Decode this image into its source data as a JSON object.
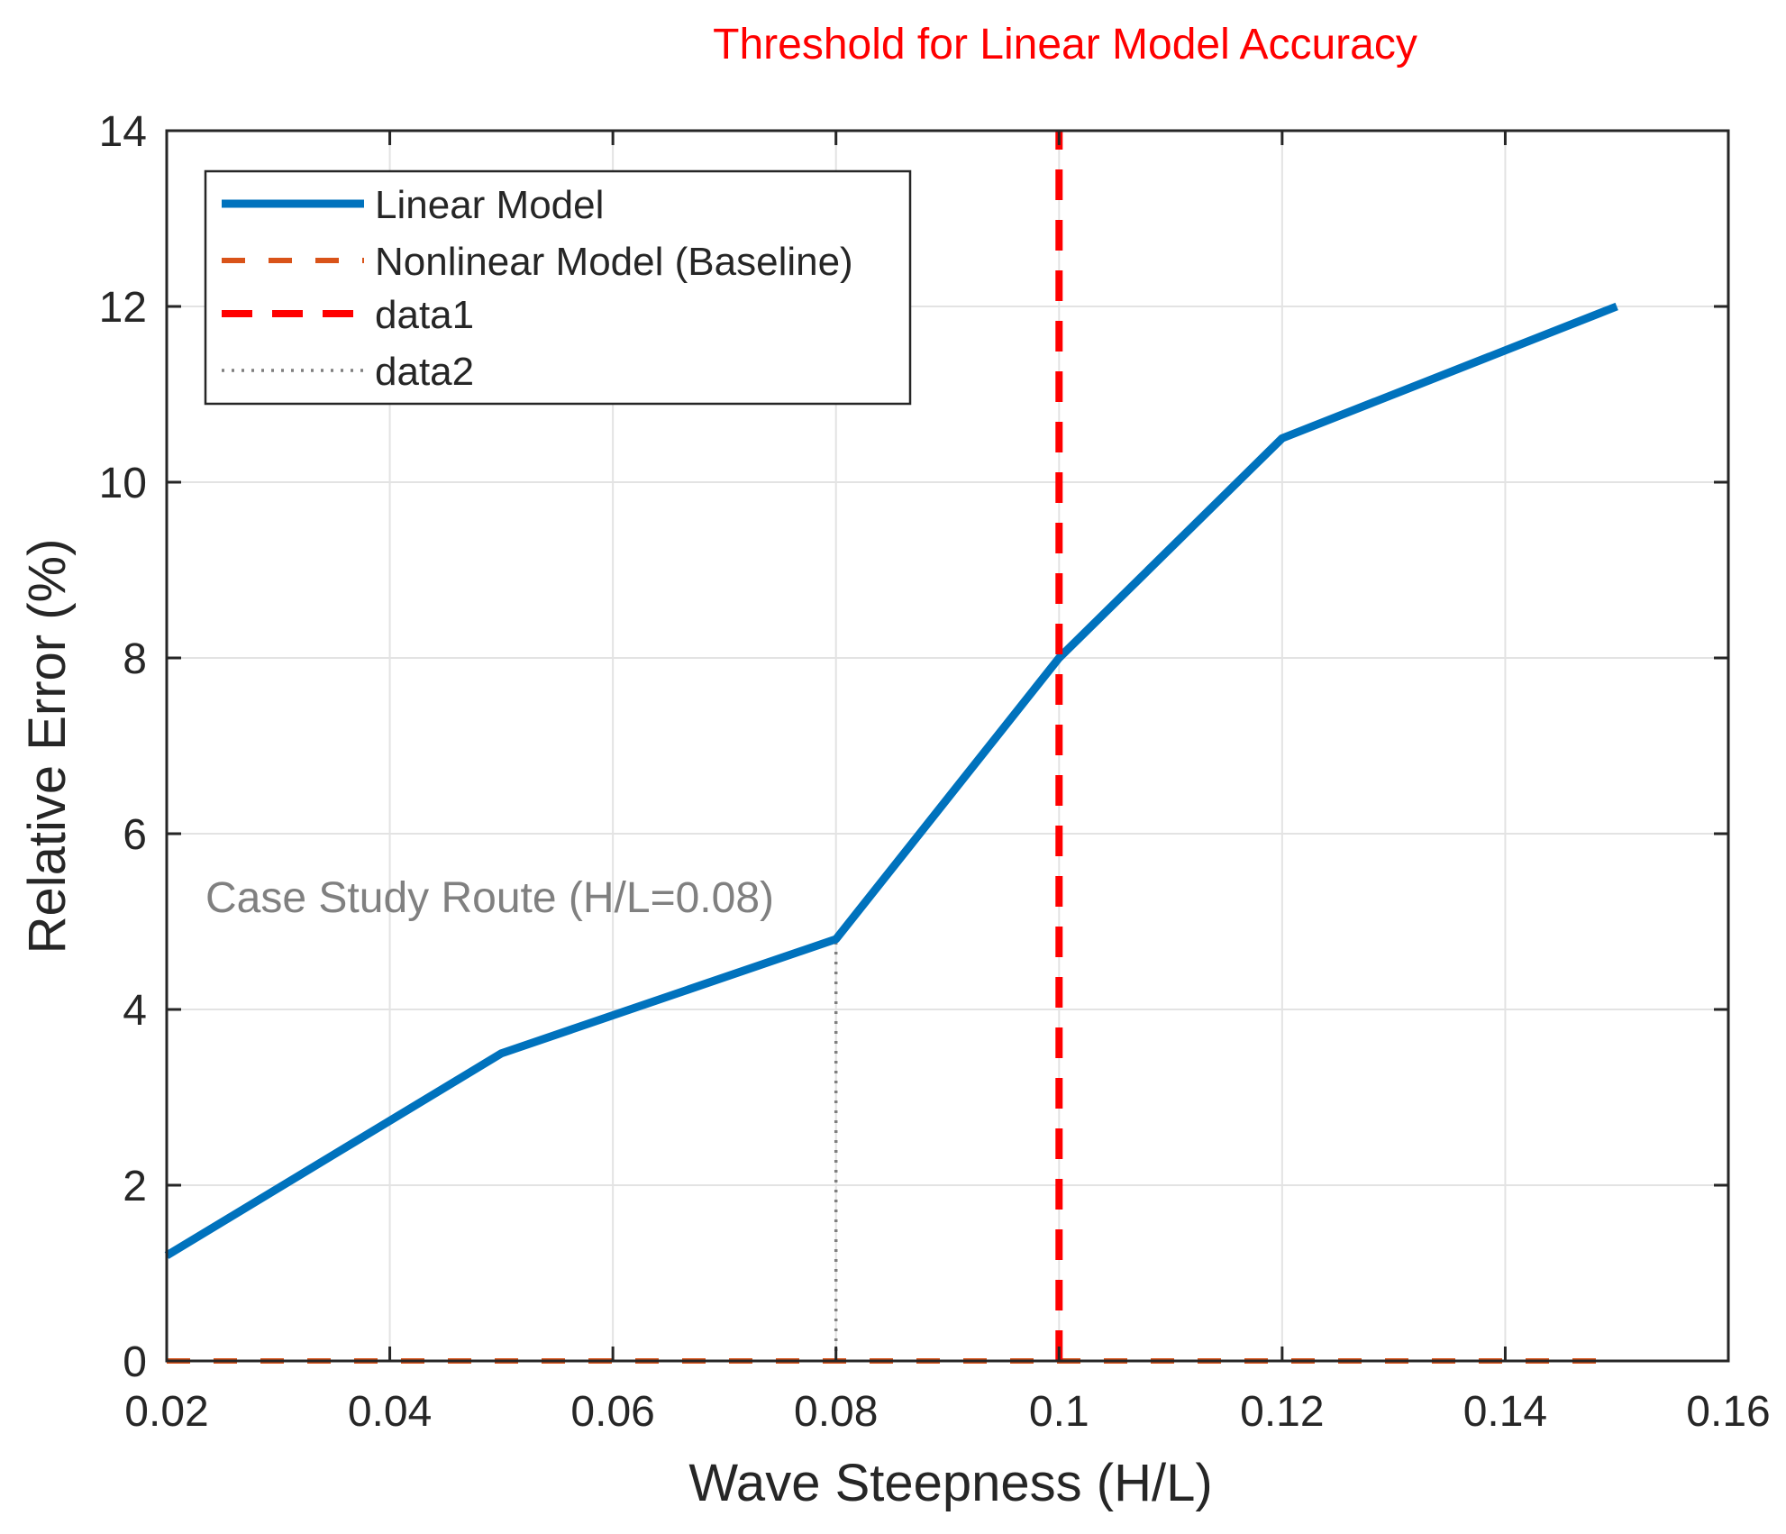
{
  "chart_data": {
    "type": "line",
    "title": "",
    "xlabel": "Wave Steepness (H/L)",
    "ylabel": "Relative Error (%)",
    "xlim": [
      0.02,
      0.16
    ],
    "ylim": [
      0,
      14
    ],
    "grid": true,
    "legend_position": "top-left",
    "xticks": [
      0.02,
      0.04,
      0.06,
      0.08,
      0.1,
      0.12,
      0.14,
      0.16
    ],
    "xtick_labels": [
      "0.02",
      "0.04",
      "0.06",
      "0.08",
      "0.1",
      "0.12",
      "0.14",
      "0.16"
    ],
    "yticks": [
      0,
      2,
      4,
      6,
      8,
      10,
      12,
      14
    ],
    "ytick_labels": [
      "0",
      "2",
      "4",
      "6",
      "8",
      "10",
      "12",
      "14"
    ],
    "series": [
      {
        "name": "Linear Model",
        "style": "solid",
        "color": "#0072BD",
        "x": [
          0.02,
          0.05,
          0.08,
          0.1,
          0.12,
          0.15
        ],
        "y": [
          1.2,
          3.5,
          4.8,
          8.0,
          10.5,
          12.0
        ]
      },
      {
        "name": "Nonlinear Model (Baseline)",
        "style": "dashed",
        "color": "#D95319",
        "x": [
          0.02,
          0.15
        ],
        "y": [
          0,
          0
        ]
      },
      {
        "name": "data1",
        "style": "dashed",
        "color": "#FF0000",
        "x": [
          0.1,
          0.1
        ],
        "y": [
          0,
          14
        ]
      },
      {
        "name": "data2",
        "style": "dotted",
        "color": "#7F7F7F",
        "x": [
          0.08,
          0.08
        ],
        "y": [
          0,
          4.8
        ]
      }
    ],
    "annotations": [
      {
        "text": "Threshold for Linear Model Accuracy",
        "color": "#FF0000"
      },
      {
        "text": "Case Study Route (H/L=0.08)",
        "color": "#808080"
      }
    ]
  }
}
